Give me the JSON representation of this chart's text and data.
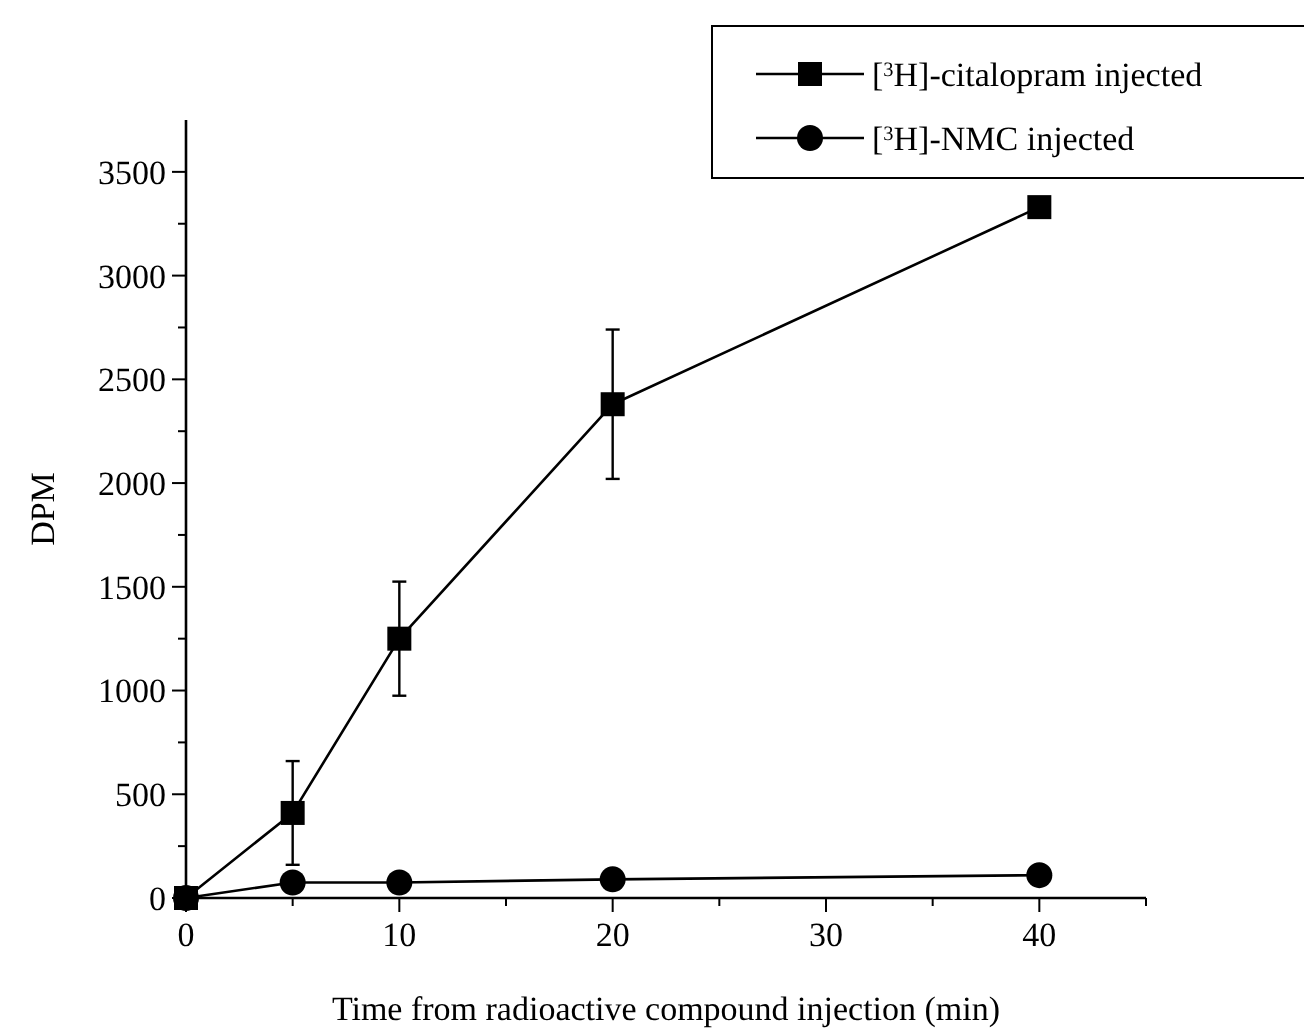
{
  "chart_data": {
    "type": "line",
    "xlabel": "Time from radioactive compound injection (min)",
    "ylabel": "DPM",
    "x": [
      0,
      5,
      10,
      20,
      40
    ],
    "series": [
      {
        "name": "[$^{3}$H]-citalopram injected",
        "color": "#000000",
        "marker": "square",
        "values": [
          0,
          410,
          1250,
          2380,
          3330
        ],
        "errors": [
          null,
          250,
          275,
          360,
          null
        ]
      },
      {
        "name": "[$^{3}$H]-NMC injected",
        "color": "#000000",
        "marker": "circle",
        "values": [
          0,
          75,
          75,
          90,
          110
        ]
      }
    ],
    "xlim": [
      0,
      45
    ],
    "xticks": [
      0,
      {
        "value": 5,
        "label": null
      },
      10,
      {
        "value": 15,
        "label": null
      },
      20,
      {
        "value": 25,
        "label": null
      },
      30,
      {
        "value": 35,
        "label": null
      },
      40,
      {
        "value": 45,
        "label": null
      }
    ],
    "ylim": [
      0,
      3750
    ],
    "yticks": [
      0,
      {
        "value": 250,
        "label": null
      },
      500,
      {
        "value": 750,
        "label": null
      },
      1000,
      {
        "value": 1250,
        "label": null
      },
      1500,
      {
        "value": 1750,
        "label": null
      },
      2000,
      {
        "value": 2250,
        "label": null
      },
      2500,
      {
        "value": 2750,
        "label": null
      },
      3000,
      {
        "value": 3250,
        "label": null
      },
      3500
    ],
    "grid": false,
    "legend": "top right",
    "line_style": "solid"
  }
}
